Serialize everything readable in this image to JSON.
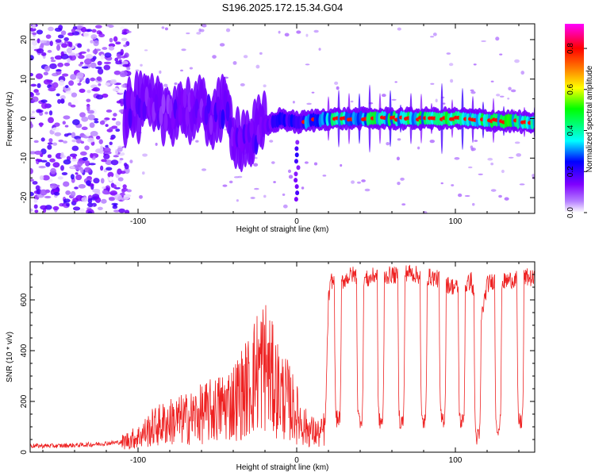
{
  "chart_data": [
    {
      "type": "heatmap",
      "title": "S196.2025.172.15.34.G04",
      "xlabel": "Height of straight line (km)",
      "ylabel": "Frequency (Hz)",
      "xlim": [
        -168,
        150
      ],
      "ylim": [
        -24,
        24
      ],
      "xticks": [
        -100,
        0,
        100
      ],
      "yticks": [
        -20,
        -10,
        0,
        10,
        20
      ],
      "colorbar": {
        "label": "Normalized spectral amplitude",
        "range": [
          0,
          0.92
        ],
        "ticks": [
          "0.0",
          "0.2",
          "0.4",
          "0.6",
          "0.8"
        ],
        "colormap": [
          "#ffffff",
          "#7f00ff",
          "#0000ff",
          "#00ffff",
          "#00ff00",
          "#ffff00",
          "#ff7f00",
          "#ff0000",
          "#ff00ff"
        ]
      },
      "ridge": {
        "description_points_x": [
          -108,
          -95,
          -85,
          -75,
          -65,
          -55,
          -45,
          -38,
          -30,
          -20,
          -10,
          0,
          20,
          50,
          100,
          150
        ],
        "freq_hz": [
          2,
          3,
          1,
          3,
          2,
          1,
          2,
          -4,
          -5,
          -2,
          0,
          -1,
          0,
          0,
          0,
          -1
        ],
        "peak_amplitude": [
          0.3,
          0.3,
          0.25,
          0.3,
          0.3,
          0.3,
          0.35,
          0.3,
          0.3,
          0.35,
          0.4,
          0.45,
          0.7,
          0.75,
          0.8,
          0.85
        ]
      },
      "noise_region_x": [
        -168,
        -110
      ]
    },
    {
      "type": "line",
      "xlabel": "Height of straight line (km)",
      "ylabel": "SNR (10 * v/v)",
      "xlim": [
        -168,
        150
      ],
      "ylim": [
        0,
        750
      ],
      "xticks": [
        -100,
        0,
        100
      ],
      "yticks": [
        0,
        200,
        400,
        600
      ],
      "color": "#ee2222",
      "x": [
        -168,
        -150,
        -130,
        -110,
        -100,
        -90,
        -80,
        -70,
        -60,
        -50,
        -40,
        -30,
        -25,
        -20,
        -15,
        -10,
        -5,
        0,
        5,
        10,
        15,
        18,
        20,
        22,
        25,
        30,
        35,
        40,
        45,
        50,
        55,
        60,
        65,
        70,
        75,
        80,
        85,
        90,
        95,
        100,
        105,
        110,
        115,
        120,
        125,
        130,
        135,
        140,
        145,
        150
      ],
      "values": [
        25,
        25,
        30,
        40,
        60,
        100,
        120,
        130,
        150,
        170,
        200,
        260,
        320,
        350,
        280,
        230,
        200,
        150,
        100,
        80,
        70,
        100,
        600,
        680,
        650,
        680,
        700,
        690,
        680,
        700,
        690,
        700,
        690,
        710,
        700,
        690,
        690,
        680,
        660,
        650,
        640,
        680,
        480,
        660,
        680,
        670,
        680,
        680,
        690,
        680
      ],
      "dips": [
        {
          "x": 26,
          "min": 130
        },
        {
          "x": 40,
          "min": 130
        },
        {
          "x": 53,
          "min": 120
        },
        {
          "x": 66,
          "min": 120
        },
        {
          "x": 80,
          "min": 120
        },
        {
          "x": 92,
          "min": 130
        },
        {
          "x": 104,
          "min": 120
        },
        {
          "x": 114,
          "min": 60
        },
        {
          "x": 127,
          "min": 100
        },
        {
          "x": 141,
          "min": 120
        }
      ]
    }
  ]
}
